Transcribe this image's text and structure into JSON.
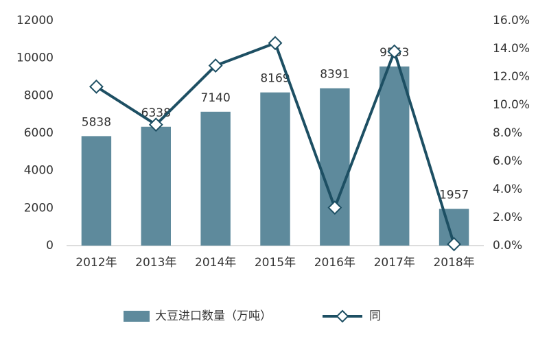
{
  "chart_data": {
    "type": "bar-line",
    "categories": [
      "2012年",
      "2013年",
      "2014年",
      "2015年",
      "2016年",
      "2017年",
      "2018年"
    ],
    "series": [
      {
        "name": "大豆进口数量（万吨）",
        "type": "bar",
        "color": "#5e8a9c",
        "values": [
          5838,
          6338,
          7140,
          8169,
          8391,
          9553,
          1957
        ]
      },
      {
        "name": "同",
        "type": "line",
        "axis": "y2",
        "color": "#1d4f63",
        "values": [
          11.3,
          8.6,
          12.8,
          14.4,
          2.7,
          13.8,
          0.1
        ]
      }
    ],
    "ylim": [
      0,
      12000
    ],
    "yticks": [
      0,
      2000,
      4000,
      6000,
      8000,
      10000,
      12000
    ],
    "y2lim": [
      0,
      16
    ],
    "y2ticks": [
      {
        "value": 0,
        "label": "0.0%"
      },
      {
        "value": 2,
        "label": "2.0%"
      },
      {
        "value": 4,
        "label": "4.0%"
      },
      {
        "value": 6,
        "label": "6.0%"
      },
      {
        "value": 8,
        "label": "8.0%"
      },
      {
        "value": 10,
        "label": "10.0%"
      },
      {
        "value": 12,
        "label": "12.0%"
      },
      {
        "value": 14,
        "label": "14.0%"
      },
      {
        "value": 16,
        "label": "16.0%"
      }
    ],
    "grid": false,
    "legend": "bottom"
  }
}
